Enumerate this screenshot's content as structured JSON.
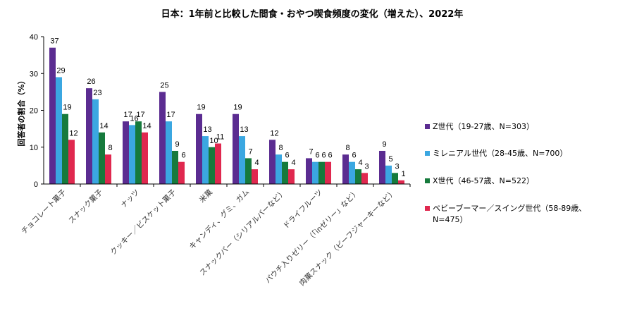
{
  "chart_data": {
    "type": "bar",
    "title": "日本：1年前と比較した間食・おやつ喫食頻度の変化（増えた）、2022年",
    "ylabel": "回答者の割合（%）",
    "xlabel": "",
    "ylim": [
      0,
      40
    ],
    "yticks": [
      "0",
      "10",
      "20",
      "30",
      "40"
    ],
    "categories": [
      "チョコレート菓子",
      "スナック菓子",
      "ナッツ",
      "クッキー／ビスケット菓子",
      "米菓",
      "キャンディ、グミ、ガム",
      "スナックバー（シリアルバーなど）",
      "ドライフルーツ",
      "パウチ入りゼリー（「inゼリー」など）",
      "肉菓スナック（ビーフジャーキーなど）"
    ],
    "series": [
      {
        "name": "Z世代（19-27歳、N=303）",
        "color": "#5B2C91",
        "values": [
          37,
          26,
          17,
          25,
          19,
          19,
          12,
          7,
          8,
          9
        ]
      },
      {
        "name": "ミレニアル世代（28-45歳、N=700）",
        "color": "#3BA7E1",
        "values": [
          29,
          23,
          16,
          17,
          13,
          13,
          8,
          6,
          6,
          5
        ]
      },
      {
        "name": "X世代（46-57歳、N=522）",
        "color": "#167A3C",
        "values": [
          19,
          14,
          17,
          9,
          10,
          7,
          6,
          6,
          4,
          3
        ]
      },
      {
        "name": "ベビーブーマー／スイング世代（58-89歳、N=475）",
        "color": "#E0284F",
        "values": [
          12,
          8,
          14,
          6,
          11,
          4,
          4,
          6,
          3,
          1
        ]
      }
    ],
    "legend_position": "right",
    "grid": false
  }
}
